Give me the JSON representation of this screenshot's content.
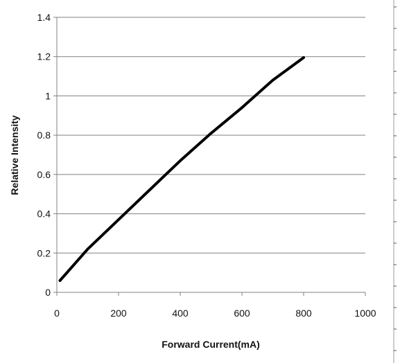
{
  "chart_data": {
    "type": "line",
    "title": "",
    "xlabel": "Forward Current(mA)",
    "ylabel": "Relative Intensity",
    "xlim": [
      0,
      1000
    ],
    "ylim": [
      0,
      1.4
    ],
    "xticks": [
      "0",
      "200",
      "400",
      "600",
      "800",
      "1000"
    ],
    "yticks": [
      "0",
      "0.2",
      "0.4",
      "0.6",
      "0.8",
      "1",
      "1.2",
      "1.4"
    ],
    "grid": "horizontal",
    "legend": "none",
    "colors": {
      "line": "#000000",
      "grid": "#808080",
      "axis": "#808080",
      "right_border": "#9a9a9a"
    },
    "series": [
      {
        "x": [
          10,
          100,
          200,
          300,
          400,
          500,
          600,
          700,
          800
        ],
        "y": [
          0.06,
          0.22,
          0.37,
          0.52,
          0.67,
          0.81,
          0.94,
          1.08,
          1.195
        ]
      }
    ]
  }
}
